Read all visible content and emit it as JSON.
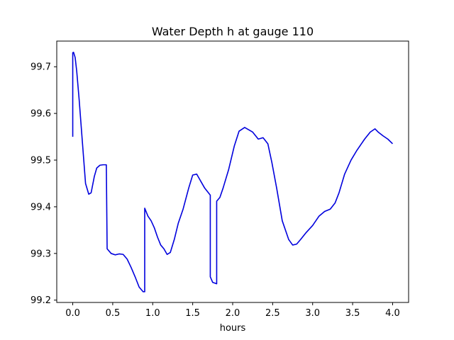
{
  "chart_data": {
    "type": "line",
    "title": "Water Depth h at gauge 110",
    "xlabel": "hours",
    "ylabel": "",
    "xlim": [
      -0.2,
      4.2
    ],
    "ylim": [
      99.195,
      99.755
    ],
    "xticks": [
      0.0,
      0.5,
      1.0,
      1.5,
      2.0,
      2.5,
      3.0,
      3.5,
      4.0
    ],
    "xtick_labels": [
      "0.0",
      "0.5",
      "1.0",
      "1.5",
      "2.0",
      "2.5",
      "3.0",
      "3.5",
      "4.0"
    ],
    "yticks": [
      99.2,
      99.3,
      99.4,
      99.5,
      99.6,
      99.7
    ],
    "ytick_labels": [
      "99.2",
      "99.3",
      "99.4",
      "99.5",
      "99.6",
      "99.7"
    ],
    "grid": false,
    "colors": {
      "line": "#0000dd",
      "axes": "#000000",
      "background": "#ffffff"
    },
    "series": [
      {
        "x": [
          0.0,
          0.0,
          0.01,
          0.03,
          0.05,
          0.08,
          0.12,
          0.16,
          0.2,
          0.23,
          0.27,
          0.3,
          0.34,
          0.38,
          0.42,
          0.43,
          0.43,
          0.48,
          0.53,
          0.58,
          0.63,
          0.68,
          0.73,
          0.78,
          0.83,
          0.88,
          0.9,
          0.9,
          0.94,
          0.98,
          1.02,
          1.06,
          1.1,
          1.14,
          1.18,
          1.22,
          1.27,
          1.32,
          1.38,
          1.45,
          1.5,
          1.55,
          1.6,
          1.65,
          1.72,
          1.72,
          1.75,
          1.8,
          1.8,
          1.84,
          1.88,
          1.95,
          2.02,
          2.08,
          2.15,
          2.2,
          2.25,
          2.32,
          2.38,
          2.44,
          2.49,
          2.55,
          2.62,
          2.7,
          2.75,
          2.8,
          2.85,
          2.92,
          3.0,
          3.08,
          3.15,
          3.22,
          3.28,
          3.33,
          3.4,
          3.48,
          3.55,
          3.65,
          3.72,
          3.78,
          3.82,
          3.88,
          3.94,
          4.0
        ],
        "y": [
          99.55,
          99.73,
          99.731,
          99.72,
          99.69,
          99.63,
          99.54,
          99.45,
          99.427,
          99.43,
          99.465,
          99.483,
          99.489,
          99.49,
          99.49,
          99.31,
          99.31,
          99.3,
          99.297,
          99.299,
          99.298,
          99.288,
          99.27,
          99.25,
          99.228,
          99.218,
          99.218,
          99.397,
          99.38,
          99.37,
          99.355,
          99.335,
          99.318,
          99.31,
          99.298,
          99.302,
          99.33,
          99.365,
          99.395,
          99.44,
          99.468,
          99.47,
          99.455,
          99.44,
          99.425,
          99.25,
          99.238,
          99.235,
          99.412,
          99.42,
          99.44,
          99.48,
          99.53,
          99.562,
          99.57,
          99.565,
          99.56,
          99.545,
          99.548,
          99.535,
          99.495,
          99.44,
          99.37,
          99.33,
          99.318,
          99.32,
          99.33,
          99.345,
          99.36,
          99.38,
          99.39,
          99.395,
          99.408,
          99.43,
          99.47,
          99.5,
          99.52,
          99.545,
          99.56,
          99.567,
          99.56,
          99.552,
          99.545,
          99.535
        ]
      }
    ]
  }
}
